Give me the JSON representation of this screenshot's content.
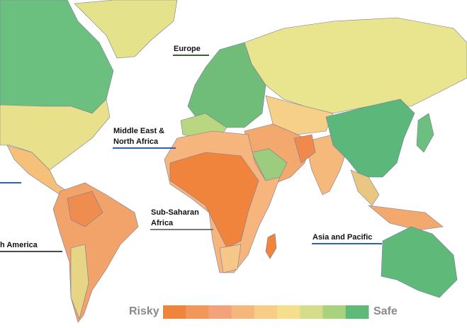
{
  "regions": [
    {
      "lines": [
        "Europe"
      ],
      "underline": "#3e5f2a"
    },
    {
      "lines": [
        "Middle East &",
        "North Africa"
      ],
      "underline": "#2f5fc4"
    },
    {
      "lines": [
        "Sub-Saharan",
        "Africa"
      ],
      "underline": "#7a7a7a"
    },
    {
      "lines": [
        "Asia and Pacific"
      ],
      "underline": "#2f5fc4"
    },
    {
      "lines": [
        "h America"
      ],
      "underline": "#4a4a4a"
    }
  ],
  "legend": {
    "low": "Risky",
    "high": "Safe",
    "colors": [
      "#f0843c",
      "#f3965a",
      "#f4a27a",
      "#f6b77c",
      "#f8cd86",
      "#f6df8c",
      "#d6dd8a",
      "#a9d27e",
      "#5fba7a"
    ]
  }
}
